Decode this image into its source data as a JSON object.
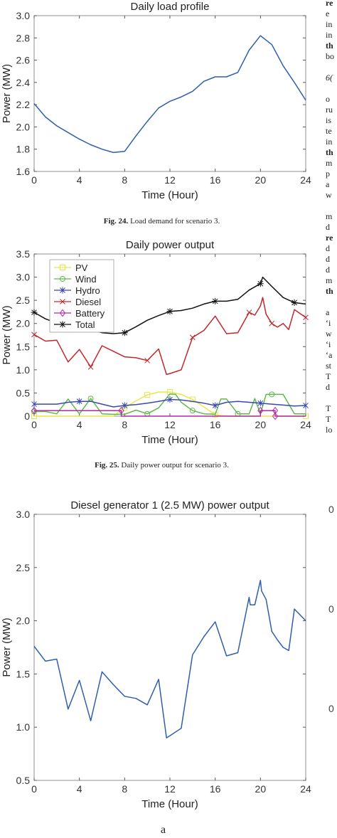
{
  "figure24": {
    "caption_label": "Fig. 24.",
    "caption_text": "Load demand for scenario 3."
  },
  "figure25": {
    "caption_label": "Fig. 25.",
    "caption_text": "Daily power output for scenario 3."
  },
  "subfigure_label": "a",
  "right_column_fragments": [
    {
      "text": "re",
      "style": "b"
    },
    {
      "text": "e",
      "style": ""
    },
    {
      "text": "in",
      "style": ""
    },
    {
      "text": "in",
      "style": ""
    },
    {
      "text": "th",
      "style": "b"
    },
    {
      "text": "bo",
      "style": ""
    },
    {
      "text": "",
      "style": ""
    },
    {
      "text": "6(",
      "style": "i"
    },
    {
      "text": "",
      "style": ""
    },
    {
      "text": "o",
      "style": ""
    },
    {
      "text": "ru",
      "style": ""
    },
    {
      "text": "is",
      "style": ""
    },
    {
      "text": "te",
      "style": ""
    },
    {
      "text": "in",
      "style": ""
    },
    {
      "text": "th",
      "style": "b"
    },
    {
      "text": "m",
      "style": ""
    },
    {
      "text": "p",
      "style": ""
    },
    {
      "text": "a",
      "style": ""
    },
    {
      "text": "w",
      "style": ""
    },
    {
      "text": "",
      "style": ""
    },
    {
      "text": "m",
      "style": ""
    },
    {
      "text": "d",
      "style": ""
    },
    {
      "text": "re",
      "style": "b"
    },
    {
      "text": "d",
      "style": ""
    },
    {
      "text": "d",
      "style": ""
    },
    {
      "text": "d",
      "style": ""
    },
    {
      "text": "m",
      "style": ""
    },
    {
      "text": "th",
      "style": "b"
    },
    {
      "text": "",
      "style": ""
    },
    {
      "text": "a",
      "style": ""
    },
    {
      "text": "‘i",
      "style": ""
    },
    {
      "text": "w",
      "style": ""
    },
    {
      "text": "‘i",
      "style": ""
    },
    {
      "text": "‘a",
      "style": ""
    },
    {
      "text": "st",
      "style": ""
    },
    {
      "text": "T",
      "style": ""
    },
    {
      "text": "d",
      "style": ""
    },
    {
      "text": "",
      "style": ""
    },
    {
      "text": "T",
      "style": ""
    },
    {
      "text": "T",
      "style": ""
    },
    {
      "text": "lo",
      "style": ""
    }
  ],
  "right_partial_ticks": [
    "0",
    "0",
    "0"
  ],
  "chart_data": [
    {
      "type": "line",
      "title": "Daily load profile",
      "xlabel": "Time (Hour)",
      "ylabel": "Power (MW)",
      "xlim": [
        0,
        24
      ],
      "ylim": [
        1.6,
        3.0
      ],
      "xticks": [
        "0",
        "4",
        "8",
        "12",
        "16",
        "20",
        "24"
      ],
      "yticks": [
        "1.6",
        "1.8",
        "2.0",
        "2.2",
        "2.4",
        "2.6",
        "2.8",
        "3.0"
      ],
      "grid": false,
      "series": [
        {
          "color": "#2f5fa8",
          "x": [
            0,
            1,
            2,
            3,
            4,
            5,
            6,
            7,
            8,
            9,
            10,
            11,
            12,
            13,
            14,
            15,
            16,
            17,
            18,
            19,
            20,
            21,
            22,
            23,
            24
          ],
          "y": [
            2.21,
            2.09,
            2.01,
            1.95,
            1.89,
            1.84,
            1.8,
            1.77,
            1.78,
            1.92,
            2.05,
            2.17,
            2.23,
            2.27,
            2.32,
            2.41,
            2.45,
            2.45,
            2.49,
            2.69,
            2.82,
            2.74,
            2.55,
            2.4,
            2.24
          ]
        }
      ]
    },
    {
      "type": "line",
      "title": "Daily power output",
      "xlabel": "Time (Hour)",
      "ylabel": "Power (MW)",
      "xlim": [
        0,
        24
      ],
      "ylim": [
        0,
        3.5
      ],
      "xticks": [
        "0",
        "4",
        "8",
        "12",
        "16",
        "20",
        "24"
      ],
      "yticks": [
        "0",
        "0.5",
        "1.0",
        "1.5",
        "2.0",
        "2.5",
        "3.0",
        "3.5"
      ],
      "grid": false,
      "legend_position": "top-left",
      "series": [
        {
          "name": "PV",
          "color": "#e8e84a",
          "marker": "square",
          "x": [
            0,
            7,
            8,
            9,
            10,
            11,
            12,
            13,
            14,
            15,
            16,
            17,
            24
          ],
          "y": [
            0,
            0,
            0.18,
            0.33,
            0.46,
            0.52,
            0.52,
            0.47,
            0.36,
            0.2,
            0.03,
            0,
            0
          ]
        },
        {
          "name": "Wind",
          "color": "#5fb94a",
          "marker": "circle",
          "x": [
            0,
            1,
            2,
            3,
            4,
            5,
            6,
            7,
            8,
            9,
            10,
            11,
            12,
            12.5,
            13,
            14,
            15,
            16,
            16.5,
            17,
            18,
            19,
            19.5,
            20,
            20.5,
            21,
            22,
            23,
            24
          ],
          "y": [
            0.1,
            0.1,
            0.05,
            0.37,
            0.05,
            0.38,
            0.05,
            0.04,
            0.04,
            0.13,
            0.05,
            0.18,
            0.48,
            0.47,
            0.3,
            0.12,
            0.05,
            0.04,
            0.37,
            0.37,
            0.05,
            0.05,
            0.38,
            0.05,
            0.47,
            0.47,
            0.47,
            0.05,
            0.05
          ]
        },
        {
          "name": "Hydro",
          "color": "#3848b0",
          "marker": "asterisk",
          "x": [
            0,
            1,
            2,
            3,
            4,
            5,
            6,
            7,
            8,
            9,
            10,
            11,
            12,
            13,
            14,
            15,
            16,
            17,
            18,
            19,
            20,
            21,
            22,
            23,
            24
          ],
          "y": [
            0.26,
            0.26,
            0.26,
            0.3,
            0.32,
            0.32,
            0.26,
            0.2,
            0.23,
            0.25,
            0.28,
            0.32,
            0.36,
            0.35,
            0.32,
            0.28,
            0.23,
            0.3,
            0.32,
            0.3,
            0.28,
            0.26,
            0.24,
            0.22,
            0.23
          ]
        },
        {
          "name": "Diesel",
          "color": "#c0282c",
          "marker": "x",
          "x": [
            0,
            1,
            2,
            3,
            4,
            5,
            6,
            7,
            8,
            9,
            10,
            11,
            11.7,
            12,
            13,
            14,
            15,
            16,
            17,
            18,
            19,
            19.5,
            20,
            20.2,
            20.5,
            21,
            21.5,
            22,
            22.5,
            23,
            24
          ],
          "y": [
            1.76,
            1.62,
            1.64,
            1.17,
            1.44,
            1.06,
            1.52,
            1.4,
            1.28,
            1.26,
            1.2,
            1.45,
            0.9,
            0.92,
            1.0,
            1.7,
            1.85,
            2.16,
            1.78,
            1.8,
            2.24,
            2.18,
            2.38,
            2.56,
            2.2,
            2.0,
            1.92,
            2.0,
            1.87,
            2.3,
            2.13
          ]
        },
        {
          "name": "Battery",
          "color": "#b02aa8",
          "marker": "diamond",
          "x": [
            0,
            7.7,
            7.7,
            20,
            20,
            21.3,
            21.3,
            24
          ],
          "y": [
            0.12,
            0.12,
            0,
            0,
            0.12,
            0.12,
            0,
            0
          ]
        },
        {
          "name": "Total",
          "color": "#111111",
          "marker": "star",
          "x": [
            0,
            1,
            2,
            3,
            4,
            5,
            6,
            7,
            8,
            9,
            10,
            11,
            12,
            13,
            14,
            15,
            16,
            17,
            18,
            19,
            20,
            20.2,
            21,
            22,
            23,
            24
          ],
          "y": [
            2.24,
            2.1,
            2.01,
            1.95,
            1.91,
            1.86,
            1.8,
            1.78,
            1.8,
            1.93,
            2.07,
            2.17,
            2.26,
            2.28,
            2.33,
            2.42,
            2.48,
            2.48,
            2.52,
            2.72,
            2.86,
            3.0,
            2.8,
            2.56,
            2.45,
            2.42
          ]
        }
      ]
    },
    {
      "type": "line",
      "title": "Diesel generator 1 (2.5 MW) power output",
      "xlabel": "Time (Hour)",
      "ylabel": "Power (MW)",
      "xlim": [
        0,
        24
      ],
      "ylim": [
        0.5,
        3.0
      ],
      "xticks": [
        "0",
        "4",
        "8",
        "12",
        "16",
        "20",
        "24"
      ],
      "yticks": [
        "0.5",
        "1.0",
        "1.5",
        "2.0",
        "2.5",
        "3.0"
      ],
      "grid": false,
      "series": [
        {
          "color": "#2f5fa8",
          "x": [
            0,
            1,
            2,
            3,
            4,
            5,
            6,
            7,
            8,
            9,
            10,
            11,
            11.7,
            12,
            13,
            14,
            15,
            16,
            17,
            18,
            19,
            19.1,
            19.5,
            20,
            20.1,
            20.5,
            21,
            21.5,
            22,
            22.5,
            23,
            24
          ],
          "y": [
            1.76,
            1.62,
            1.64,
            1.17,
            1.44,
            1.06,
            1.52,
            1.4,
            1.29,
            1.27,
            1.21,
            1.45,
            0.9,
            0.92,
            0.99,
            1.68,
            1.85,
            1.99,
            1.67,
            1.7,
            2.22,
            2.15,
            2.15,
            2.38,
            2.28,
            2.2,
            1.9,
            1.82,
            1.75,
            1.72,
            2.11,
            2.0
          ]
        }
      ]
    }
  ]
}
